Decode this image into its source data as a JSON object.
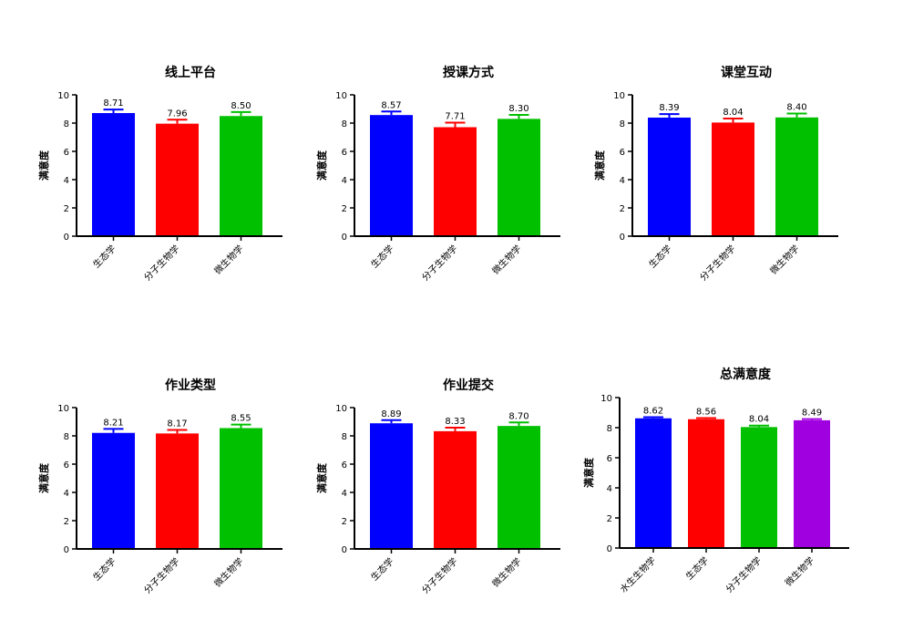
{
  "chart_data": [
    {
      "type": "bar",
      "title": "线上平台",
      "ylabel": "满意度",
      "xlabel": "",
      "ylim": [
        0,
        10
      ],
      "yticks": [
        0,
        2,
        4,
        6,
        8,
        10
      ],
      "categories": [
        "生态学",
        "分子生物学",
        "微生物学"
      ],
      "values": [
        8.71,
        7.96,
        8.5
      ],
      "value_labels": [
        "8.71",
        "7.96",
        "8.50"
      ],
      "errors": [
        0.25,
        0.28,
        0.28
      ],
      "colors": [
        "#0000ff",
        "#ff0000",
        "#00c000"
      ],
      "grid": false
    },
    {
      "type": "bar",
      "title": "授课方式",
      "ylabel": "满意度",
      "xlabel": "",
      "ylim": [
        0,
        10
      ],
      "yticks": [
        0,
        2,
        4,
        6,
        8,
        10
      ],
      "categories": [
        "生态学",
        "分子生物学",
        "微生物学"
      ],
      "values": [
        8.57,
        7.71,
        8.3
      ],
      "value_labels": [
        "8.57",
        "7.71",
        "8.30"
      ],
      "errors": [
        0.25,
        0.32,
        0.28
      ],
      "colors": [
        "#0000ff",
        "#ff0000",
        "#00c000"
      ],
      "grid": false
    },
    {
      "type": "bar",
      "title": "课堂互动",
      "ylabel": "满意度",
      "xlabel": "",
      "ylim": [
        0,
        10
      ],
      "yticks": [
        0,
        2,
        4,
        6,
        8,
        10
      ],
      "categories": [
        "生态学",
        "分子生物学",
        "微生物学"
      ],
      "values": [
        8.39,
        8.04,
        8.4
      ],
      "value_labels": [
        "8.39",
        "8.04",
        "8.40"
      ],
      "errors": [
        0.25,
        0.28,
        0.28
      ],
      "colors": [
        "#0000ff",
        "#ff0000",
        "#00c000"
      ],
      "grid": false
    },
    {
      "type": "bar",
      "title": "作业类型",
      "ylabel": "满意度",
      "xlabel": "",
      "ylim": [
        0,
        10
      ],
      "yticks": [
        0,
        2,
        4,
        6,
        8,
        10
      ],
      "categories": [
        "生态学",
        "分子生物学",
        "微生物学"
      ],
      "values": [
        8.21,
        8.17,
        8.55
      ],
      "value_labels": [
        "8.21",
        "8.17",
        "8.55"
      ],
      "errors": [
        0.28,
        0.25,
        0.25
      ],
      "colors": [
        "#0000ff",
        "#ff0000",
        "#00c000"
      ],
      "grid": false
    },
    {
      "type": "bar",
      "title": "作业提交",
      "ylabel": "满意度",
      "xlabel": "",
      "ylim": [
        0,
        10
      ],
      "yticks": [
        0,
        2,
        4,
        6,
        8,
        10
      ],
      "categories": [
        "生态学",
        "分子生物学",
        "微生物学"
      ],
      "values": [
        8.89,
        8.33,
        8.7
      ],
      "value_labels": [
        "8.89",
        "8.33",
        "8.70"
      ],
      "errors": [
        0.22,
        0.25,
        0.25
      ],
      "colors": [
        "#0000ff",
        "#ff0000",
        "#00c000"
      ],
      "grid": false
    },
    {
      "type": "bar",
      "title": "总满意度",
      "ylabel": "满意度",
      "xlabel": "",
      "ylim": [
        0,
        10
      ],
      "yticks": [
        0,
        2,
        4,
        6,
        8,
        10
      ],
      "categories": [
        "水生生物学",
        "生态学",
        "分子生物学",
        "微生物学"
      ],
      "values": [
        8.62,
        8.56,
        8.04,
        8.49
      ],
      "value_labels": [
        "8.62",
        "8.56",
        "8.04",
        "8.49"
      ],
      "errors": [
        0.08,
        0.08,
        0.1,
        0.08
      ],
      "colors": [
        "#0000ff",
        "#ff0000",
        "#00c000",
        "#a000e0"
      ],
      "grid": false
    }
  ]
}
